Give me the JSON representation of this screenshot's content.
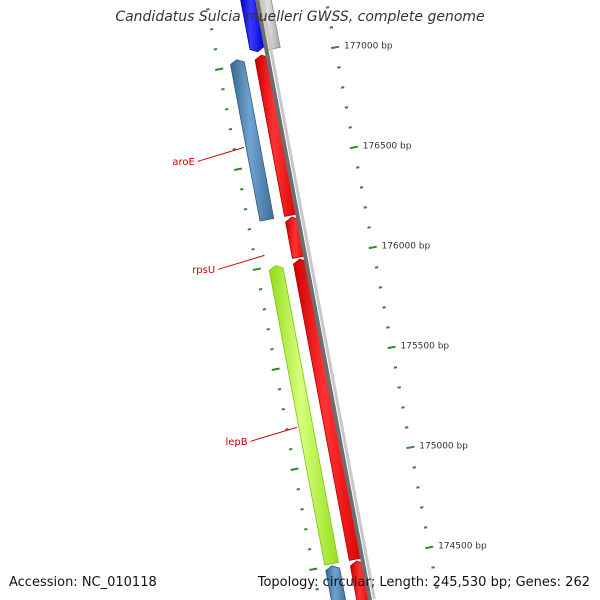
{
  "title": "Candidatus Sulcia muelleri GWSS, complete genome",
  "footer": {
    "accession": "Accession: NC_010118",
    "summary": "Topology: circular; Length: 245,530 bp; Genes: 262"
  },
  "colors": {
    "backbone_dark": "#6e6e6e",
    "backbone_light": "#c8c8c8",
    "tick": "#2f8a2f",
    "label": "#333333",
    "gene_label": "#cc0000",
    "gene_red": "#ff0000",
    "gene_blue": "#4682b4",
    "gene_lime": "#adff2f",
    "gene_darkblue": "#0000ff",
    "gene_grey": "#c0c0c0"
  },
  "position_labels": [
    {
      "bp": 177000,
      "label": "177000 bp"
    },
    {
      "bp": 176500,
      "label": "176500 bp"
    },
    {
      "bp": 176000,
      "label": "176000 bp"
    },
    {
      "bp": 175500,
      "label": "175500 bp"
    },
    {
      "bp": 175000,
      "label": "175000 bp"
    },
    {
      "bp": 174500,
      "label": "174500 bp"
    }
  ],
  "genes": [
    {
      "name": "",
      "start": 177050,
      "end": 177330,
      "color": "gene_darkblue",
      "lane": "middle-left",
      "strand": "-"
    },
    {
      "name": "",
      "start": 177050,
      "end": 177330,
      "color": "gene_grey",
      "lane": "middle-right",
      "strand": "+"
    },
    {
      "name": "aroE",
      "start": 176230,
      "end": 177030,
      "color": "gene_blue",
      "lane": "outer-left",
      "strand": "+"
    },
    {
      "name": "",
      "start": 176230,
      "end": 177030,
      "color": "gene_red",
      "lane": "inner",
      "strand": "+"
    },
    {
      "name": "rpsU",
      "start": 176020,
      "end": 176220,
      "color": "gene_red",
      "lane": "inner",
      "strand": "+"
    },
    {
      "name": "lepB",
      "start": 174510,
      "end": 176000,
      "color": "gene_lime",
      "lane": "outer-left",
      "strand": "+"
    },
    {
      "name": "",
      "start": 174510,
      "end": 176010,
      "color": "gene_red",
      "lane": "inner",
      "strand": "+"
    },
    {
      "name": "",
      "start": 174300,
      "end": 174500,
      "color": "gene_blue",
      "lane": "outer-left",
      "strand": "+"
    },
    {
      "name": "",
      "start": 174300,
      "end": 174500,
      "color": "gene_red",
      "lane": "inner",
      "strand": "+"
    }
  ]
}
